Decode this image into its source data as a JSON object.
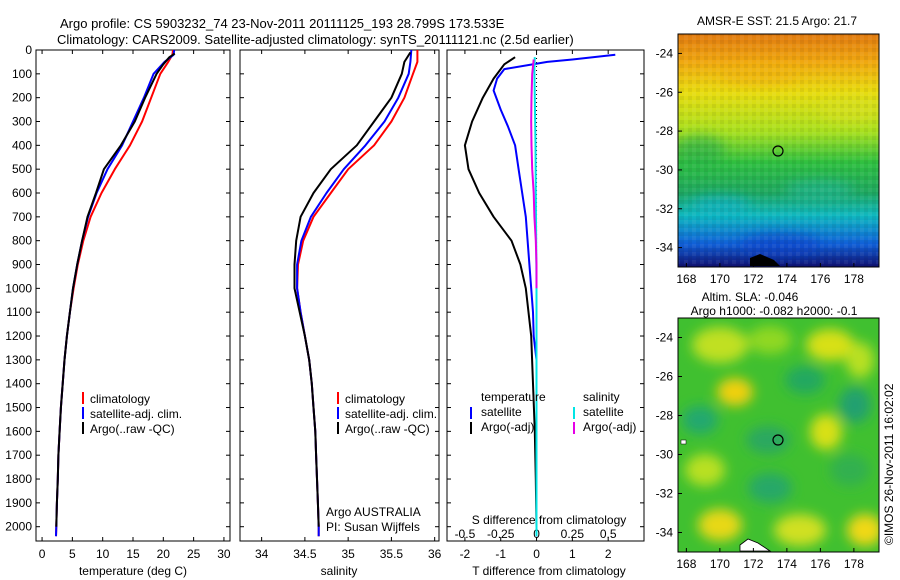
{
  "header": {
    "line1": "Argo profile: CS 5903232_74 23-Nov-2011 20111125_193 28.799S 173.533E",
    "line2": "Climatology: CARS2009. Satellite-adjusted climatology: synTS_20111121.nc (2.5d earlier)"
  },
  "copyright": "©IMOS 26-Nov-2011 16:02:02",
  "colors": {
    "climatology": "#ff0000",
    "satellite": "#0000ff",
    "argo": "#000000",
    "sal_satellite": "#00e5e5",
    "sal_argo": "#e600e6",
    "marker": "#000000"
  },
  "chart_data": [
    {
      "type": "line",
      "id": "temperature-profile",
      "xlabel": "temperature (deg C)",
      "ylabel": "",
      "xlim": [
        -1,
        31
      ],
      "ylim": [
        2060,
        0
      ],
      "xticks": [
        0,
        5,
        10,
        15,
        20,
        25,
        30
      ],
      "yticks": [
        0,
        100,
        200,
        300,
        400,
        500,
        600,
        700,
        800,
        900,
        1000,
        1100,
        1200,
        1300,
        1400,
        1500,
        1600,
        1700,
        1800,
        1900,
        2000
      ],
      "legend": [
        "climatology",
        "satellite-adj. clim.",
        "Argo(..raw -QC)"
      ],
      "series": [
        {
          "name": "climatology",
          "color": "#ff0000",
          "points": [
            [
              21.6,
              0
            ],
            [
              21.5,
              20
            ],
            [
              20.8,
              50
            ],
            [
              19.5,
              100
            ],
            [
              18.0,
              200
            ],
            [
              16.5,
              300
            ],
            [
              14.5,
              400
            ],
            [
              12.0,
              500
            ],
            [
              9.8,
              600
            ],
            [
              8.0,
              700
            ],
            [
              6.8,
              800
            ],
            [
              5.9,
              900
            ],
            [
              5.2,
              1000
            ],
            [
              4.6,
              1100
            ],
            [
              4.1,
              1200
            ],
            [
              3.7,
              1300
            ],
            [
              3.4,
              1400
            ],
            [
              3.1,
              1500
            ],
            [
              2.9,
              1600
            ],
            [
              2.7,
              1700
            ],
            [
              2.6,
              1800
            ],
            [
              2.45,
              1900
            ],
            [
              2.35,
              2000
            ],
            [
              2.3,
              2040
            ]
          ]
        },
        {
          "name": "satellite-adj. clim.",
          "color": "#0000ff",
          "points": [
            [
              21.8,
              0
            ],
            [
              21.7,
              20
            ],
            [
              20.2,
              50
            ],
            [
              18.4,
              100
            ],
            [
              16.8,
              200
            ],
            [
              15.0,
              300
            ],
            [
              13.2,
              400
            ],
            [
              10.8,
              500
            ],
            [
              9.0,
              600
            ],
            [
              7.6,
              700
            ],
            [
              6.6,
              800
            ],
            [
              5.8,
              900
            ],
            [
              5.1,
              1000
            ],
            [
              4.6,
              1100
            ],
            [
              4.1,
              1200
            ],
            [
              3.7,
              1300
            ],
            [
              3.4,
              1400
            ],
            [
              3.1,
              1500
            ],
            [
              2.9,
              1600
            ],
            [
              2.7,
              1700
            ],
            [
              2.6,
              1800
            ],
            [
              2.45,
              1900
            ],
            [
              2.35,
              2000
            ],
            [
              2.3,
              2040
            ]
          ]
        },
        {
          "name": "Argo(..raw -QC)",
          "color": "#000000",
          "points": [
            [
              21.9,
              15
            ],
            [
              21.0,
              30
            ],
            [
              20.0,
              60
            ],
            [
              18.9,
              100
            ],
            [
              17.0,
              200
            ],
            [
              15.3,
              300
            ],
            [
              13.0,
              400
            ],
            [
              10.2,
              500
            ],
            [
              8.9,
              600
            ],
            [
              7.5,
              700
            ],
            [
              6.6,
              800
            ],
            [
              5.8,
              900
            ],
            [
              5.1,
              1000
            ],
            [
              4.6,
              1100
            ],
            [
              4.1,
              1200
            ],
            [
              3.7,
              1300
            ],
            [
              3.4,
              1400
            ],
            [
              3.1,
              1500
            ],
            [
              2.9,
              1600
            ],
            [
              2.7,
              1700
            ],
            [
              2.6,
              1800
            ],
            [
              2.45,
              1900
            ],
            [
              2.35,
              2000
            ]
          ]
        }
      ]
    },
    {
      "type": "line",
      "id": "salinity-profile",
      "xlabel": "salinity",
      "ylabel": "",
      "xlim": [
        33.75,
        36.05
      ],
      "ylim": [
        2060,
        0
      ],
      "xticks": [
        34,
        34.5,
        35,
        35.5,
        36
      ],
      "yticks": [],
      "legend": [
        "climatology",
        "satellite-adj. clim.",
        "Argo(..raw -QC)"
      ],
      "annotation": [
        "Argo AUSTRALIA",
        "PI: Susan Wijffels"
      ],
      "series": [
        {
          "name": "climatology",
          "color": "#ff0000",
          "points": [
            [
              35.8,
              0
            ],
            [
              35.8,
              50
            ],
            [
              35.75,
              100
            ],
            [
              35.65,
              200
            ],
            [
              35.5,
              300
            ],
            [
              35.3,
              400
            ],
            [
              35.0,
              500
            ],
            [
              34.8,
              600
            ],
            [
              34.6,
              700
            ],
            [
              34.48,
              800
            ],
            [
              34.42,
              900
            ],
            [
              34.41,
              1000
            ],
            [
              34.45,
              1100
            ],
            [
              34.5,
              1200
            ],
            [
              34.55,
              1300
            ],
            [
              34.58,
              1400
            ],
            [
              34.6,
              1500
            ],
            [
              34.62,
              1600
            ],
            [
              34.63,
              1700
            ],
            [
              34.64,
              1800
            ],
            [
              34.65,
              1900
            ],
            [
              34.66,
              2000
            ],
            [
              34.66,
              2040
            ]
          ]
        },
        {
          "name": "satellite-adj. clim.",
          "color": "#0000ff",
          "points": [
            [
              35.73,
              0
            ],
            [
              35.72,
              50
            ],
            [
              35.7,
              100
            ],
            [
              35.58,
              200
            ],
            [
              35.42,
              300
            ],
            [
              35.2,
              400
            ],
            [
              34.95,
              500
            ],
            [
              34.75,
              600
            ],
            [
              34.57,
              700
            ],
            [
              34.46,
              800
            ],
            [
              34.41,
              900
            ],
            [
              34.41,
              1000
            ],
            [
              34.45,
              1100
            ],
            [
              34.5,
              1200
            ],
            [
              34.55,
              1300
            ],
            [
              34.58,
              1400
            ],
            [
              34.6,
              1500
            ],
            [
              34.62,
              1600
            ],
            [
              34.63,
              1700
            ],
            [
              34.64,
              1800
            ],
            [
              34.65,
              1900
            ],
            [
              34.66,
              2000
            ],
            [
              34.66,
              2040
            ]
          ]
        },
        {
          "name": "Argo(..raw -QC)",
          "color": "#000000",
          "points": [
            [
              35.72,
              10
            ],
            [
              35.65,
              50
            ],
            [
              35.62,
              100
            ],
            [
              35.5,
              200
            ],
            [
              35.3,
              300
            ],
            [
              35.1,
              400
            ],
            [
              34.8,
              500
            ],
            [
              34.6,
              600
            ],
            [
              34.45,
              700
            ],
            [
              34.4,
              800
            ],
            [
              34.38,
              900
            ],
            [
              34.38,
              1000
            ],
            [
              34.44,
              1100
            ],
            [
              34.5,
              1200
            ],
            [
              34.55,
              1300
            ],
            [
              34.58,
              1400
            ],
            [
              34.6,
              1500
            ],
            [
              34.62,
              1600
            ],
            [
              34.63,
              1700
            ],
            [
              34.64,
              1800
            ],
            [
              34.65,
              1900
            ],
            [
              34.66,
              2000
            ]
          ]
        }
      ]
    },
    {
      "type": "line",
      "id": "difference-profile",
      "xlabel": "T difference from climatology",
      "xlabel2": "S difference from climatology",
      "xlim": [
        -2.5,
        3
      ],
      "ylim": [
        2060,
        0
      ],
      "xticks": [
        -2,
        -1,
        0,
        1,
        2
      ],
      "xticks2": [
        "-0.5",
        "-0.25",
        "0",
        "0.25",
        "0.5"
      ],
      "legend_groups": [
        {
          "title": "temperature",
          "entries": [
            "satellite",
            "Argo(-adj)"
          ]
        },
        {
          "title": "salinity",
          "entries": [
            "satellite",
            "Argo(-adj)"
          ]
        }
      ],
      "series": [
        {
          "name": "temperature satellite",
          "color": "#0000ff",
          "points": [
            [
              2.2,
              20
            ],
            [
              1.0,
              40
            ],
            [
              0.3,
              50
            ],
            [
              -0.9,
              80
            ],
            [
              -1.1,
              120
            ],
            [
              -1.2,
              170
            ],
            [
              -1.0,
              250
            ],
            [
              -0.8,
              320
            ],
            [
              -0.6,
              400
            ],
            [
              -0.5,
              500
            ],
            [
              -0.4,
              600
            ],
            [
              -0.3,
              700
            ],
            [
              -0.25,
              800
            ],
            [
              -0.2,
              900
            ],
            [
              -0.15,
              1000
            ],
            [
              -0.1,
              1100
            ],
            [
              -0.08,
              1200
            ],
            [
              0,
              1300
            ],
            [
              0,
              2040
            ]
          ]
        },
        {
          "name": "temperature Argo(-adj)",
          "color": "#000000",
          "points": [
            [
              -0.6,
              30
            ],
            [
              -0.9,
              60
            ],
            [
              -1.2,
              120
            ],
            [
              -1.5,
              200
            ],
            [
              -1.8,
              300
            ],
            [
              -2.0,
              400
            ],
            [
              -1.9,
              500
            ],
            [
              -1.6,
              600
            ],
            [
              -1.2,
              700
            ],
            [
              -0.7,
              800
            ],
            [
              -0.45,
              900
            ],
            [
              -0.3,
              1000
            ],
            [
              -0.15,
              1200
            ],
            [
              -0.1,
              1400
            ],
            [
              -0.05,
              1600
            ],
            [
              -0.02,
              1800
            ],
            [
              0,
              2000
            ]
          ]
        },
        {
          "name": "salinity satellite",
          "color": "#00e5e5",
          "points": [
            [
              -0.05,
              30
            ],
            [
              -0.06,
              80
            ],
            [
              -0.05,
              200
            ],
            [
              -0.03,
              400
            ],
            [
              -0.02,
              600
            ],
            [
              -0.01,
              800
            ],
            [
              0,
              1000
            ],
            [
              0,
              2040
            ]
          ]
        },
        {
          "name": "salinity Argo(-adj)",
          "color": "#e600e6",
          "points": [
            [
              -0.08,
              40
            ],
            [
              -0.12,
              100
            ],
            [
              -0.14,
              200
            ],
            [
              -0.15,
              300
            ],
            [
              -0.14,
              400
            ],
            [
              -0.12,
              500
            ],
            [
              -0.08,
              600
            ],
            [
              -0.06,
              700
            ],
            [
              -0.02,
              800
            ],
            [
              0,
              900
            ],
            [
              0,
              1000
            ]
          ]
        }
      ]
    },
    {
      "type": "heatmap",
      "id": "sst-map",
      "title": "AMSR-E SST: 21.5 Argo: 21.7",
      "xticks": [
        168,
        170,
        172,
        174,
        176,
        178
      ],
      "yticks": [
        -24,
        -26,
        -28,
        -30,
        -32,
        -34
      ],
      "xlim": [
        167.5,
        179.5
      ],
      "ylim": [
        -35,
        -23
      ],
      "marker": [
        173.533,
        -28.799
      ]
    },
    {
      "type": "heatmap",
      "id": "sla-map",
      "title_line1": "Altim. SLA: -0.046",
      "title_line2": "Argo h1000: -0.082 h2000: -0.1",
      "xticks": [
        168,
        170,
        172,
        174,
        176,
        178
      ],
      "yticks": [
        -24,
        -26,
        -28,
        -30,
        -32,
        -34
      ],
      "xlim": [
        167.5,
        179.5
      ],
      "ylim": [
        -35,
        -23
      ],
      "marker": [
        173.533,
        -28.799
      ]
    }
  ]
}
